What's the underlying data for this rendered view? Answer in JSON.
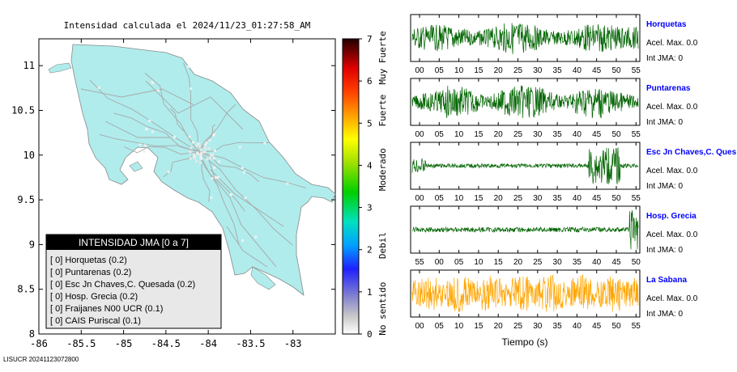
{
  "chart_data": [
    {
      "type": "map",
      "title": "Intensidad calculada el 2024/11/23_01:27:58_AM",
      "x_ticks": [
        "-86",
        "-85.5",
        "-85",
        "-84.5",
        "-84",
        "-83.5",
        "-83"
      ],
      "y_ticks": [
        "8",
        "8.5",
        "9",
        "9.5",
        "10",
        "10.5",
        "11"
      ],
      "xlim": [
        -86,
        -82.5
      ],
      "ylim": [
        8,
        11.3
      ],
      "colorbar": {
        "ticks": [
          "0",
          "1",
          "2",
          "3",
          "4",
          "5",
          "6",
          "7"
        ],
        "range": [
          0,
          7
        ],
        "categories": [
          "No sentido",
          "Debil",
          "Moderado",
          "Fuerte",
          "Muy Fuerte"
        ]
      },
      "legend_box": {
        "title": "INTENSIDAD JMA [0 a 7]",
        "items": [
          "[ 0]  Horquetas (0.2)",
          "[ 0]  Puntarenas (0.2)",
          "[ 0]  Esc Jn Chaves,C. Quesada (0.2)",
          "[ 0]  Hosp. Grecia (0.2)",
          "[ 0]  Fraijanes N00 UCR (0.1)",
          "[ 0]  CAIS Puriscal (0.1)"
        ]
      },
      "footer_id": "LISUCR 20241123072800"
    },
    {
      "type": "line",
      "xlabel": "Tiempo (s)",
      "stations": [
        {
          "name": "Horquetas",
          "acel": "Acel. Max. 0.0",
          "jma": "Int JMA: 0",
          "color": "#006400",
          "ticks": [
            "00",
            "05",
            "10",
            "15",
            "20",
            "25",
            "30",
            "35",
            "40",
            "45",
            "50",
            "55"
          ],
          "profile": "steady"
        },
        {
          "name": "Puntarenas",
          "acel": "Acel. Max. 0.0",
          "jma": "Int JMA: 0",
          "color": "#006400",
          "ticks": [
            "00",
            "05",
            "10",
            "15",
            "20",
            "25",
            "30",
            "35",
            "40",
            "45",
            "50",
            "55"
          ],
          "profile": "bursty"
        },
        {
          "name": "Esc Jn Chaves,C. Ques",
          "acel": "Acel. Max. 0.0",
          "jma": "Int JMA: 0",
          "color": "#006400",
          "ticks": [
            "00",
            "05",
            "10",
            "15",
            "20",
            "25",
            "30",
            "35",
            "40",
            "45",
            "50",
            "55"
          ],
          "profile": "event_late"
        },
        {
          "name": "Hosp. Grecia",
          "acel": "Acel. Max. 0.0",
          "jma": "Int JMA: 0",
          "color": "#006400",
          "ticks": [
            "55",
            "00",
            "05",
            "10",
            "15",
            "20",
            "25",
            "30",
            "35",
            "40",
            "45",
            "50"
          ],
          "profile": "end_spike"
        },
        {
          "name": "La Sabana",
          "acel": "Acel. Max. 0.0",
          "jma": "Int JMA: 0",
          "color": "#ffa500",
          "ticks": [
            "00",
            "05",
            "10",
            "15",
            "20",
            "25",
            "30",
            "35",
            "40",
            "45",
            "50",
            "55"
          ],
          "profile": "noisy"
        }
      ]
    }
  ]
}
